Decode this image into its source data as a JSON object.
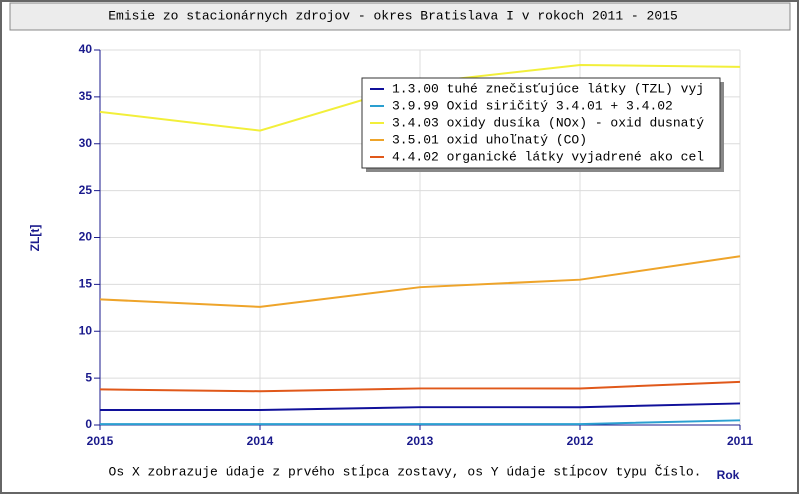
{
  "chart_data": {
    "type": "line",
    "title": "Emisie zo stacionárnych zdrojov - okres Bratislava I v rokoch 2011 - 2015",
    "y_label": "ZL[t]",
    "x_label": "Rok",
    "footer": "Os X zobrazuje údaje z prvého stĺpca zostavy, os Y údaje stĺpcov typu Číslo.",
    "categories": [
      "2015",
      "2014",
      "2013",
      "2012",
      "2011"
    ],
    "ylim": [
      0,
      40
    ],
    "yticks": [
      0,
      5,
      10,
      15,
      20,
      25,
      30,
      35,
      40
    ],
    "grid": true,
    "series": [
      {
        "name": "1.3.00 tuhé znečisťujúce látky (TZL) vyj",
        "color": "#10109a",
        "values": [
          1.6,
          1.6,
          1.9,
          1.9,
          2.3
        ]
      },
      {
        "name": "3.9.99 Oxid siričitý 3.4.01 + 3.4.02",
        "color": "#2a9fd0",
        "values": [
          0.1,
          0.1,
          0.1,
          0.1,
          0.5
        ]
      },
      {
        "name": "3.4.03 oxidy dusíka (NOx) - oxid dusnatý",
        "color": "#f2ef3a",
        "values": [
          33.4,
          31.4,
          36.5,
          38.4,
          38.2
        ]
      },
      {
        "name": "3.5.01 oxid uhoľnatý (CO)",
        "color": "#eea42a",
        "values": [
          13.4,
          12.6,
          14.7,
          15.5,
          18.0
        ]
      },
      {
        "name": "4.4.02 organické látky vyjadrené ako cel",
        "color": "#e0581a",
        "values": [
          3.8,
          3.6,
          3.9,
          3.9,
          4.6
        ]
      }
    ]
  }
}
